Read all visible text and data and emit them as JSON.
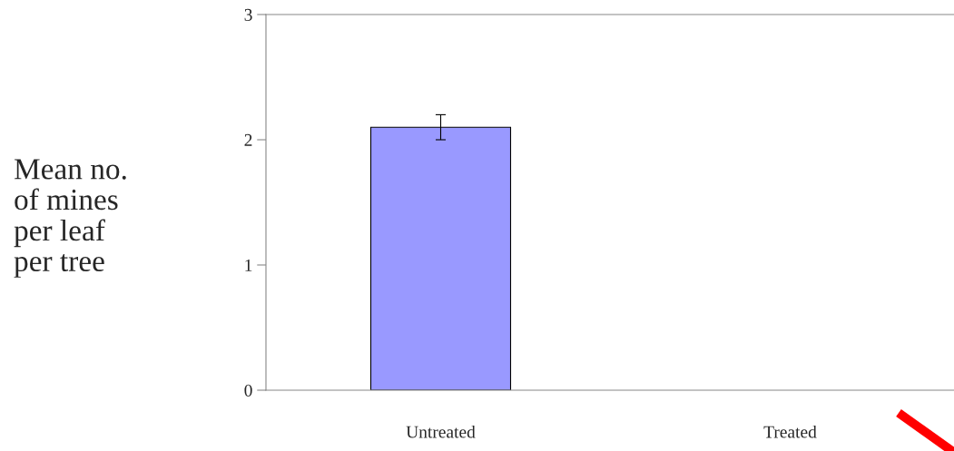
{
  "chart_data": {
    "type": "bar",
    "ylabel": "Mean no.\nof mines\nper leaf\nper tree",
    "categories": [
      "Untreated",
      "Treated"
    ],
    "values": [
      2.1,
      0
    ],
    "errors": [
      0.1,
      null
    ],
    "color": "#9999ff",
    "ylim": [
      0,
      3
    ],
    "yticks": [
      0,
      1,
      2,
      3
    ],
    "grid": false,
    "legend": false
  }
}
